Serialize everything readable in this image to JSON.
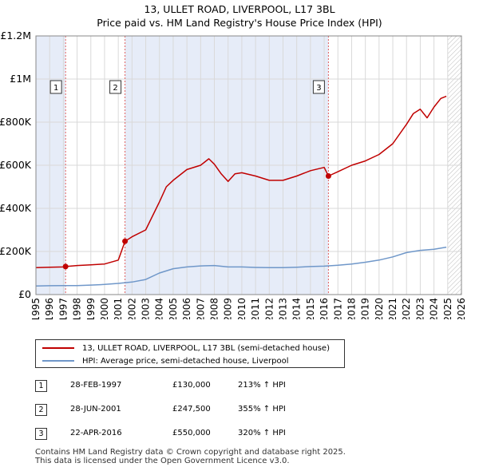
{
  "chart_data": {
    "type": "line",
    "title": "13, ULLET ROAD, LIVERPOOL, L17 3BL",
    "subtitle": "Price paid vs. HM Land Registry's House Price Index (HPI)",
    "xlabel": "",
    "ylabel": "",
    "xlim": [
      1995,
      2026
    ],
    "ylim": [
      0,
      1200000
    ],
    "x_ticks": [
      "1995",
      "1996",
      "1997",
      "1998",
      "1999",
      "2000",
      "2001",
      "2002",
      "2003",
      "2004",
      "2005",
      "2006",
      "2007",
      "2008",
      "2009",
      "2010",
      "2011",
      "2012",
      "2013",
      "2014",
      "2015",
      "2016",
      "2017",
      "2018",
      "2019",
      "2020",
      "2021",
      "2022",
      "2023",
      "2024",
      "2025",
      "2026"
    ],
    "y_ticks": [
      {
        "value": 0,
        "label": "£0"
      },
      {
        "value": 200000,
        "label": "£200K"
      },
      {
        "value": 400000,
        "label": "£400K"
      },
      {
        "value": 600000,
        "label": "£600K"
      },
      {
        "value": 800000,
        "label": "£800K"
      },
      {
        "value": 1000000,
        "label": "£1M"
      },
      {
        "value": 1200000,
        "label": "£1.2M"
      }
    ],
    "shaded_ranges": [
      [
        1995,
        1997.16
      ],
      [
        2001.49,
        2016.31
      ]
    ],
    "future_hatch_from": 2025.0,
    "series": [
      {
        "name": "13, ULLET ROAD, LIVERPOOL, L17 3BL (semi-detached house)",
        "color": "#c00000",
        "x": [
          1995,
          1996,
          1997,
          1997.16,
          1998,
          1999,
          2000,
          2001,
          2001.49,
          2002,
          2003,
          2004,
          2004.5,
          2005,
          2006,
          2007,
          2007.6,
          2008,
          2008.5,
          2009,
          2009.5,
          2010,
          2011,
          2012,
          2013,
          2014,
          2015,
          2016,
          2016.31,
          2017,
          2018,
          2019,
          2020,
          2021,
          2022,
          2022.5,
          2023,
          2023.5,
          2024,
          2024.5,
          2024.9
        ],
        "y": [
          125000,
          127000,
          128000,
          130000,
          135000,
          138000,
          142000,
          160000,
          247500,
          268000,
          300000,
          430000,
          500000,
          530000,
          580000,
          600000,
          630000,
          605000,
          560000,
          525000,
          560000,
          565000,
          550000,
          530000,
          530000,
          550000,
          575000,
          590000,
          550000,
          570000,
          600000,
          620000,
          650000,
          700000,
          790000,
          840000,
          860000,
          820000,
          870000,
          910000,
          920000
        ]
      },
      {
        "name": "HPI: Average price, semi-detached house, Liverpool",
        "color": "#6f97c9",
        "x": [
          1995,
          1996,
          1997,
          1998,
          1999,
          2000,
          2001,
          2002,
          2003,
          2004,
          2005,
          2006,
          2007,
          2008,
          2009,
          2010,
          2011,
          2012,
          2013,
          2014,
          2015,
          2016,
          2017,
          2018,
          2019,
          2020,
          2021,
          2022,
          2023,
          2024,
          2024.9
        ],
        "y": [
          40000,
          41000,
          41500,
          42000,
          44000,
          47000,
          52000,
          58000,
          70000,
          100000,
          120000,
          128000,
          133000,
          135000,
          128000,
          128000,
          126000,
          125000,
          125000,
          127000,
          130000,
          132000,
          136000,
          142000,
          150000,
          160000,
          175000,
          195000,
          205000,
          210000,
          220000
        ]
      }
    ],
    "sales": [
      {
        "num": "1",
        "x": 1997.16,
        "y": 130000
      },
      {
        "num": "2",
        "x": 2001.49,
        "y": 247500
      },
      {
        "num": "3",
        "x": 2016.31,
        "y": 550000
      }
    ]
  },
  "legend": {
    "property_label": "13, ULLET ROAD, LIVERPOOL, L17 3BL (semi-detached house)",
    "hpi_label": "HPI: Average price, semi-detached house, Liverpool"
  },
  "sales_table": [
    {
      "num": "1",
      "date": "28-FEB-1997",
      "price": "£130,000",
      "hpi": "213% ↑ HPI"
    },
    {
      "num": "2",
      "date": "28-JUN-2001",
      "price": "£247,500",
      "hpi": "355% ↑ HPI"
    },
    {
      "num": "3",
      "date": "22-APR-2016",
      "price": "£550,000",
      "hpi": "320% ↑ HPI"
    }
  ],
  "footer": {
    "line1": "Contains HM Land Registry data © Crown copyright and database right 2025.",
    "line2": "This data is licensed under the Open Government Licence v3.0."
  },
  "colors": {
    "property": "#c00000",
    "hpi": "#6f97c9",
    "shade": "#e6ecf8",
    "sale_line": "#e06060",
    "grid": "#d9d9d9"
  }
}
